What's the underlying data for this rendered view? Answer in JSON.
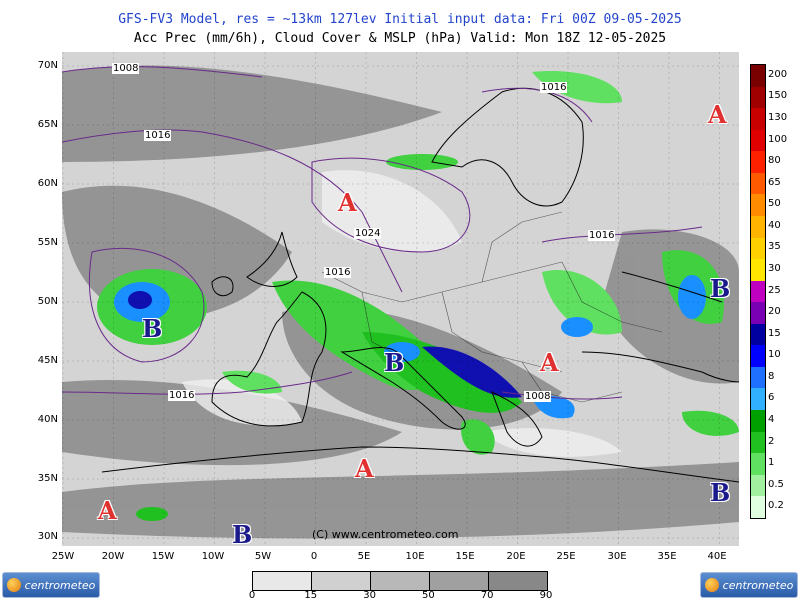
{
  "header": {
    "line1": "GFS-FV3 Model, res = ~13km 127lev   Initial input data: Fri 00Z 09-05-2025",
    "line2": "Acc Prec (mm/6h), Cloud Cover & MSLP (hPa)  Valid: Mon 18Z 12-05-2025"
  },
  "axes": {
    "y_labels": [
      "70N",
      "65N",
      "60N",
      "55N",
      "50N",
      "45N",
      "40N",
      "35N",
      "30N"
    ],
    "x_labels": [
      "25W",
      "20W",
      "15W",
      "10W",
      "5W",
      "0",
      "5E",
      "10E",
      "15E",
      "20E",
      "25E",
      "30E",
      "35E",
      "40E"
    ]
  },
  "pressure_centers": [
    {
      "type": "A",
      "label": "A"
    },
    {
      "type": "A",
      "label": "A"
    },
    {
      "type": "A",
      "label": "A"
    },
    {
      "type": "A",
      "label": "A"
    },
    {
      "type": "A",
      "label": "A"
    },
    {
      "type": "B",
      "label": "B"
    },
    {
      "type": "B",
      "label": "B"
    },
    {
      "type": "B",
      "label": "B"
    },
    {
      "type": "B",
      "label": "B"
    },
    {
      "type": "B",
      "label": "B"
    }
  ],
  "isobar_labels": [
    "1008",
    "1016",
    "1016",
    "1024",
    "1016",
    "1016",
    "1016",
    "1008"
  ],
  "credit": "(C) www.centrometeo.com",
  "precip_scale": {
    "labels": [
      "200",
      "150",
      "130",
      "100",
      "80",
      "65",
      "50",
      "40",
      "35",
      "30",
      "25",
      "20",
      "15",
      "10",
      "8",
      "6",
      "4",
      "2",
      "1",
      "0.5",
      "0.2"
    ],
    "colors": [
      "#7a0000",
      "#a00000",
      "#c80000",
      "#e00000",
      "#ff2000",
      "#ff5a00",
      "#ff8c00",
      "#ffb400",
      "#ffd000",
      "#ffe600",
      "#c000c0",
      "#7a00b4",
      "#0000a0",
      "#0000ff",
      "#2070ff",
      "#30b0ff",
      "#00a000",
      "#20c020",
      "#60e060",
      "#a0f0a0",
      "#e0ffe0"
    ]
  },
  "cloud_scale": {
    "labels": [
      "0",
      "15",
      "30",
      "50",
      "70",
      "90"
    ],
    "colors": [
      "#e8e8e8",
      "#d0d0d0",
      "#b8b8b8",
      "#a0a0a0",
      "#888888",
      "#707070"
    ]
  },
  "logos": {
    "left": "centrometeo",
    "right": "centrometeo"
  }
}
